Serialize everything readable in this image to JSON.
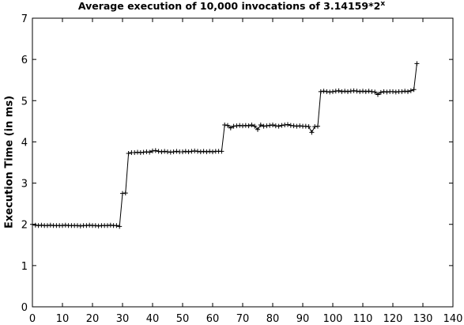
{
  "chart_data": {
    "type": "line",
    "title": "Average execution of 10,000 invocations of 3.14159*2",
    "title_exponent": "x",
    "y_label": "Execution Time (in ms)",
    "x": [
      0,
      1,
      2,
      3,
      4,
      5,
      6,
      7,
      8,
      9,
      10,
      11,
      12,
      13,
      14,
      15,
      16,
      17,
      18,
      19,
      20,
      21,
      22,
      23,
      24,
      25,
      26,
      27,
      28,
      29,
      30,
      31,
      32,
      33,
      34,
      35,
      36,
      37,
      38,
      39,
      40,
      41,
      42,
      43,
      44,
      45,
      46,
      47,
      48,
      49,
      50,
      51,
      52,
      53,
      54,
      55,
      56,
      57,
      58,
      59,
      60,
      61,
      62,
      63,
      64,
      65,
      66,
      67,
      68,
      69,
      70,
      71,
      72,
      73,
      74,
      75,
      76,
      77,
      78,
      79,
      80,
      81,
      82,
      83,
      84,
      85,
      86,
      87,
      88,
      89,
      90,
      91,
      92,
      93,
      94,
      95,
      96,
      97,
      98,
      99,
      100,
      101,
      102,
      103,
      104,
      105,
      106,
      107,
      108,
      109,
      110,
      111,
      112,
      113,
      114,
      115,
      116,
      117,
      118,
      119,
      120,
      121,
      122,
      123,
      124,
      125,
      126,
      127,
      128
    ],
    "series": [
      {
        "color": "#000000",
        "values": [
          2.0,
          1.98,
          1.97,
          1.98,
          1.97,
          1.97,
          1.98,
          1.97,
          1.97,
          1.97,
          1.97,
          1.98,
          1.97,
          1.97,
          1.97,
          1.97,
          1.96,
          1.97,
          1.97,
          1.98,
          1.97,
          1.97,
          1.96,
          1.97,
          1.97,
          1.97,
          1.98,
          1.97,
          1.97,
          1.95,
          2.75,
          2.76,
          3.72,
          3.74,
          3.74,
          3.75,
          3.74,
          3.75,
          3.76,
          3.75,
          3.78,
          3.79,
          3.77,
          3.76,
          3.77,
          3.76,
          3.75,
          3.76,
          3.77,
          3.76,
          3.76,
          3.77,
          3.76,
          3.77,
          3.78,
          3.77,
          3.76,
          3.77,
          3.76,
          3.77,
          3.76,
          3.77,
          3.77,
          3.77,
          4.41,
          4.4,
          4.34,
          4.38,
          4.39,
          4.4,
          4.39,
          4.4,
          4.39,
          4.41,
          4.38,
          4.3,
          4.41,
          4.38,
          4.39,
          4.4,
          4.41,
          4.39,
          4.38,
          4.4,
          4.41,
          4.42,
          4.4,
          4.39,
          4.38,
          4.39,
          4.38,
          4.38,
          4.37,
          4.23,
          4.37,
          4.38,
          5.22,
          5.23,
          5.22,
          5.21,
          5.22,
          5.23,
          5.24,
          5.22,
          5.23,
          5.22,
          5.23,
          5.24,
          5.23,
          5.22,
          5.23,
          5.22,
          5.23,
          5.22,
          5.21,
          5.15,
          5.2,
          5.22,
          5.21,
          5.22,
          5.22,
          5.21,
          5.22,
          5.22,
          5.23,
          5.22,
          5.24,
          5.27,
          5.9
        ]
      }
    ],
    "xlim": [
      0,
      140
    ],
    "xticks": [
      0,
      10,
      20,
      30,
      40,
      50,
      60,
      70,
      80,
      90,
      100,
      110,
      120,
      130,
      140
    ],
    "ylim": [
      0,
      7
    ],
    "yticks": [
      0,
      1,
      2,
      3,
      4,
      5,
      6,
      7
    ],
    "marker": "+",
    "grid": false
  }
}
